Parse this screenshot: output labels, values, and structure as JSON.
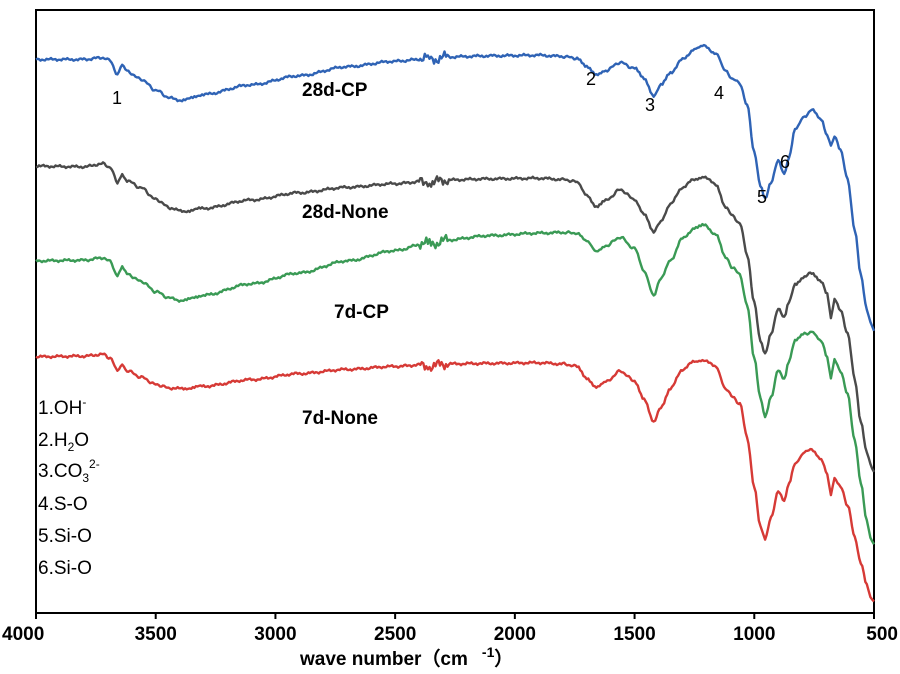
{
  "chart_data": {
    "type": "line",
    "title": "",
    "xlabel": "wave number（cm",
    "xlabel_superscript": "-1",
    "xlabel_close": "）",
    "ylabel": "",
    "xlim": [
      4000,
      500
    ],
    "x_reversed": true,
    "x_ticks": [
      "4000",
      "3500",
      "3000",
      "2500",
      "2000",
      "1500",
      "1000",
      "500"
    ],
    "x_tick_values": [
      4000,
      3500,
      3000,
      2500,
      2000,
      1500,
      1000,
      500
    ],
    "ylim": [
      0,
      100
    ],
    "y_axis_shown": false,
    "grid": false,
    "series": [
      {
        "name": "28d-CP",
        "color": "#2f63b5",
        "x": [
          4000,
          3800,
          3720,
          3690,
          3660,
          3640,
          3620,
          3560,
          3500,
          3440,
          3390,
          3300,
          3100,
          2900,
          2700,
          2500,
          2370,
          2350,
          2300,
          2100,
          1900,
          1800,
          1740,
          1700,
          1660,
          1620,
          1560,
          1500,
          1460,
          1420,
          1390,
          1350,
          1300,
          1250,
          1210,
          1160,
          1120,
          1090,
          1060,
          1030,
          1000,
          975,
          955,
          930,
          900,
          875,
          855,
          830,
          790,
          760,
          720,
          695,
          680,
          665,
          640,
          610,
          580,
          555,
          530,
          515,
          500
        ],
        "y": [
          91.8,
          91.8,
          92.1,
          91.6,
          89.3,
          90.8,
          89.8,
          88.5,
          86.7,
          85.4,
          85.0,
          86.0,
          87.6,
          89.1,
          90.6,
          91.5,
          91.9,
          91.6,
          92.2,
          92.4,
          92.5,
          92.3,
          92.0,
          90.5,
          89.2,
          90.0,
          91.3,
          90.3,
          88.6,
          85.8,
          87.5,
          89.6,
          91.8,
          93.5,
          94.0,
          92.8,
          89.8,
          88.6,
          87.8,
          84.2,
          76.5,
          70.8,
          68.6,
          71.5,
          75.0,
          72.9,
          75.6,
          80.1,
          82.3,
          83.5,
          81.7,
          79.2,
          77.5,
          79.0,
          76.9,
          71.8,
          63.5,
          56.0,
          50.5,
          48.2,
          46.8
        ]
      },
      {
        "name": "28d-None",
        "color": "#4a4a4a",
        "x": [
          4000,
          3800,
          3720,
          3690,
          3660,
          3640,
          3620,
          3560,
          3500,
          3440,
          3390,
          3300,
          3100,
          2900,
          2700,
          2500,
          2370,
          2350,
          2300,
          2100,
          1900,
          1800,
          1740,
          1700,
          1660,
          1620,
          1560,
          1500,
          1460,
          1420,
          1390,
          1350,
          1300,
          1250,
          1210,
          1160,
          1120,
          1090,
          1060,
          1030,
          1000,
          975,
          955,
          930,
          900,
          875,
          855,
          830,
          790,
          760,
          720,
          695,
          680,
          665,
          640,
          610,
          580,
          555,
          530,
          515,
          500
        ],
        "y": [
          74.1,
          74.0,
          74.5,
          73.9,
          71.4,
          72.8,
          71.7,
          70.5,
          68.6,
          67.2,
          66.6,
          67.1,
          68.5,
          69.7,
          70.6,
          71.2,
          71.6,
          71.3,
          71.8,
          72.0,
          72.1,
          71.9,
          71.5,
          69.4,
          67.4,
          68.4,
          70.2,
          68.6,
          66.2,
          63.1,
          65.1,
          67.8,
          70.6,
          71.9,
          72.4,
          71.0,
          67.4,
          65.8,
          64.6,
          59.5,
          51.4,
          45.3,
          43.1,
          46.2,
          50.6,
          48.9,
          51.5,
          54.6,
          55.8,
          56.4,
          55.1,
          52.8,
          49.0,
          52.2,
          50.1,
          46.4,
          38.7,
          31.8,
          26.5,
          24.6,
          23.4
        ]
      },
      {
        "name": "7d-CP",
        "color": "#3a9a55",
        "x": [
          4000,
          3800,
          3720,
          3690,
          3660,
          3640,
          3620,
          3560,
          3500,
          3440,
          3390,
          3300,
          3100,
          2900,
          2700,
          2500,
          2370,
          2350,
          2300,
          2100,
          1900,
          1800,
          1740,
          1700,
          1660,
          1620,
          1560,
          1500,
          1460,
          1420,
          1390,
          1350,
          1300,
          1250,
          1210,
          1160,
          1120,
          1090,
          1060,
          1030,
          1000,
          975,
          955,
          930,
          900,
          875,
          855,
          830,
          790,
          760,
          720,
          695,
          680,
          665,
          640,
          610,
          580,
          555,
          530,
          515,
          500
        ],
        "y": [
          58.4,
          58.5,
          58.9,
          58.3,
          55.9,
          57.3,
          56.2,
          55.0,
          53.3,
          52.2,
          51.8,
          52.7,
          54.6,
          56.4,
          58.4,
          60.1,
          61.3,
          61.0,
          61.8,
          62.6,
          63.0,
          63.1,
          63.0,
          61.6,
          59.9,
          60.9,
          62.3,
          60.4,
          56.6,
          52.8,
          55.4,
          58.5,
          62.1,
          63.8,
          64.3,
          62.8,
          58.9,
          57.3,
          56.1,
          51.0,
          42.4,
          35.6,
          32.4,
          35.9,
          40.2,
          38.9,
          41.9,
          45.1,
          46.3,
          46.6,
          45.0,
          42.5,
          39.0,
          41.9,
          40.2,
          36.2,
          28.6,
          21.5,
          15.4,
          12.6,
          11.4
        ]
      },
      {
        "name": "7d-None",
        "color": "#d63a36",
        "x": [
          4000,
          3800,
          3720,
          3690,
          3660,
          3640,
          3620,
          3560,
          3500,
          3440,
          3390,
          3300,
          3100,
          2900,
          2700,
          2500,
          2370,
          2350,
          2300,
          2100,
          1900,
          1800,
          1740,
          1700,
          1660,
          1620,
          1560,
          1500,
          1460,
          1420,
          1390,
          1350,
          1300,
          1250,
          1210,
          1160,
          1120,
          1090,
          1060,
          1030,
          1000,
          975,
          955,
          930,
          900,
          875,
          855,
          830,
          790,
          760,
          720,
          695,
          680,
          665,
          640,
          610,
          580,
          555,
          530,
          515,
          500
        ],
        "y": [
          42.5,
          42.6,
          42.9,
          42.3,
          40.2,
          41.3,
          40.2,
          39.1,
          37.9,
          37.3,
          37.2,
          37.6,
          38.7,
          39.7,
          40.4,
          40.9,
          41.2,
          40.9,
          41.3,
          41.4,
          41.5,
          41.3,
          40.9,
          39.0,
          37.5,
          38.3,
          40.1,
          38.5,
          35.5,
          31.6,
          34.2,
          37.2,
          40.4,
          41.7,
          42.0,
          40.8,
          37.3,
          35.8,
          34.7,
          29.2,
          20.8,
          14.5,
          12.4,
          15.7,
          20.3,
          18.5,
          21.4,
          24.9,
          26.7,
          27.1,
          25.6,
          23.0,
          19.6,
          22.4,
          20.9,
          17.9,
          12.5,
          8.4,
          4.6,
          2.7,
          1.9
        ]
      }
    ],
    "series_labels": [
      "28d-CP",
      "28d-None",
      "7d-CP",
      "7d-None"
    ],
    "peak_annotations": [
      {
        "label": "1",
        "wavenumber": 3660
      },
      {
        "label": "2",
        "wavenumber": 1660
      },
      {
        "label": "3",
        "wavenumber": 1420
      },
      {
        "label": "4",
        "wavenumber": 1120
      },
      {
        "label": "5",
        "wavenumber": 955
      },
      {
        "label": "6",
        "wavenumber": 875
      }
    ],
    "legend": {
      "placement": "bottom-left",
      "entries": [
        {
          "prefix": "1.OH",
          "sup": "-",
          "sub": "",
          "suffix": ""
        },
        {
          "prefix": "2.H",
          "sup": "",
          "sub": "2",
          "suffix": "O"
        },
        {
          "prefix": "3.CO",
          "sup": "2-",
          "sub": "3",
          "suffix": ""
        },
        {
          "prefix": "4.S-O",
          "sup": "",
          "sub": "",
          "suffix": ""
        },
        {
          "prefix": "5.Si-O",
          "sup": "",
          "sub": "",
          "suffix": ""
        },
        {
          "prefix": "6.Si-O",
          "sup": "",
          "sub": "",
          "suffix": ""
        }
      ]
    }
  }
}
